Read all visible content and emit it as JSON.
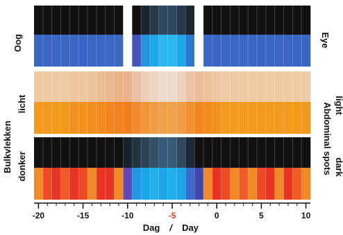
{
  "chart_data": {
    "type": "heatmap",
    "x": [
      -20,
      -19,
      -18,
      -17,
      -16,
      -15,
      -14,
      -13,
      -12,
      -11,
      -10,
      -9,
      -8,
      -7,
      -6,
      -5,
      -4,
      -3,
      -2,
      -1,
      0,
      1,
      2,
      3,
      4,
      5,
      6,
      7,
      8,
      9,
      10
    ],
    "xticks": [
      "-20",
      "-15",
      "-10",
      "-5",
      "0",
      "5",
      "10"
    ],
    "xtick_values": [
      -20,
      -15,
      -10,
      -5,
      0,
      5,
      10
    ],
    "highlight_tick": "-5",
    "highlight_color": "#e8361e",
    "xlim": [
      -20,
      10
    ],
    "xlabel_left": "Dag",
    "xlabel_sep": "/",
    "xlabel_right": "Day",
    "labels_left": {
      "eye": "Oog",
      "abdomen": "Bulkvlekken",
      "light": "licht",
      "dark": "donker"
    },
    "labels_right": {
      "eye": "Eye",
      "abdomen": "Abdominal spots",
      "light": "light",
      "dark": "dark"
    },
    "missing_days": [
      -10,
      -2
    ],
    "rows": [
      {
        "name": "eye-top",
        "colors": [
          "#111111",
          "#111111",
          "#111111",
          "#111111",
          "#111111",
          "#111111",
          "#111111",
          "#111111",
          "#111111",
          "#111111",
          "#111111",
          "#111111",
          "#1d2530",
          "#26384a",
          "#2e4861",
          "#2e4861",
          "#26384a",
          "#1d2530",
          "#111111",
          "#111111",
          "#111111",
          "#111111",
          "#111111",
          "#111111",
          "#111111",
          "#111111",
          "#111111",
          "#111111",
          "#111111",
          "#111111",
          "#111111"
        ]
      },
      {
        "name": "eye-bottom",
        "colors": [
          "#3a66c4",
          "#3a66c4",
          "#3a66c4",
          "#3a66c4",
          "#3a66c4",
          "#3a66c4",
          "#3a66c4",
          "#3a66c4",
          "#3a66c4",
          "#3a66c4",
          "#3a66c4",
          "#4451b8",
          "#2394e0",
          "#1ca8e8",
          "#2ab8ee",
          "#2ab8ee",
          "#1ca8e8",
          "#2a78d2",
          "#3a66c4",
          "#3a66c4",
          "#3a66c4",
          "#3a66c4",
          "#3a66c4",
          "#3a66c4",
          "#3a66c4",
          "#3a66c4",
          "#3a66c4",
          "#3a66c4",
          "#3a66c4",
          "#3a66c4",
          "#3a66c4"
        ]
      },
      {
        "name": "abdominal-light-top",
        "colors": [
          "#eecba2",
          "#eecba2",
          "#eecba2",
          "#eecba2",
          "#eec69c",
          "#eec69c",
          "#eec29a",
          "#ecbd94",
          "#ebb88f",
          "#ebb488",
          "#ebb18a",
          "#ecc0a2",
          "#eccdb6",
          "#ecd5c2",
          "#ecdacc",
          "#ecdacc",
          "#ecd2bc",
          "#ecc3a6",
          "#ecbe98",
          "#ecc19c",
          "#eec7a0",
          "#eecba2",
          "#eecba2",
          "#eecba2",
          "#eecba2",
          "#eecba2",
          "#eecba2",
          "#eecba2",
          "#eecba2",
          "#eecba2",
          "#eecba2"
        ]
      },
      {
        "name": "abdominal-light-bottom",
        "colors": [
          "#f39a1c",
          "#f39a1c",
          "#f39a1c",
          "#f3961c",
          "#f2921c",
          "#f2921c",
          "#f28e1c",
          "#f28a1c",
          "#f2861c",
          "#f2821c",
          "#f0801e",
          "#f08a2c",
          "#f09638",
          "#f09c42",
          "#f0a24a",
          "#f0a24a",
          "#f09c42",
          "#f09030",
          "#f0861e",
          "#f28a1c",
          "#f2921c",
          "#f39a1c",
          "#f39a1c",
          "#f39a1c",
          "#f39a1c",
          "#f39a1c",
          "#f39a1c",
          "#f39a1c",
          "#f39a1c",
          "#f39a1c",
          "#f39a1c"
        ]
      },
      {
        "name": "abdominal-dark-top",
        "colors": [
          "#111111",
          "#111111",
          "#111111",
          "#111111",
          "#111111",
          "#111111",
          "#111111",
          "#111111",
          "#111111",
          "#111111",
          "#18222c",
          "#223444",
          "#2a4256",
          "#32506a",
          "#385a76",
          "#385a76",
          "#2e4860",
          "#1c2a38",
          "#111111",
          "#111111",
          "#111111",
          "#111111",
          "#111111",
          "#111111",
          "#111111",
          "#111111",
          "#111111",
          "#111111",
          "#111111",
          "#111111",
          "#111111"
        ]
      },
      {
        "name": "abdominal-dark-bottom",
        "colors": [
          "#f08a26",
          "#ee4a26",
          "#e83424",
          "#ee5c28",
          "#e83424",
          "#ee4a26",
          "#f08a26",
          "#e83424",
          "#e83424",
          "#f08a26",
          "#6048b8",
          "#1e98e4",
          "#1aa6e8",
          "#22b0ec",
          "#1aa6e8",
          "#22b0ec",
          "#1aa6e8",
          "#3a6cca",
          "#4048b0",
          "#f08a26",
          "#e83424",
          "#ee4a26",
          "#f08a26",
          "#ee5c28",
          "#f08a26",
          "#ee4a26",
          "#e83424",
          "#f08a26",
          "#e83424",
          "#ee5c28",
          "#f08a26"
        ]
      }
    ]
  }
}
